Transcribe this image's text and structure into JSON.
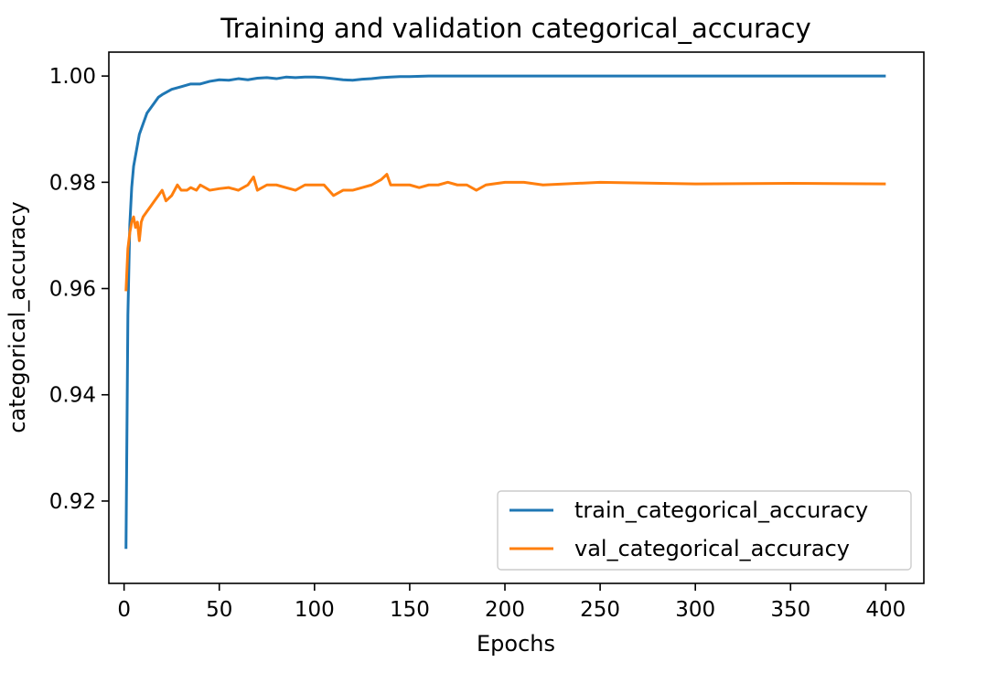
{
  "chart_data": {
    "type": "line",
    "title": "Training and validation categorical_accuracy",
    "xlabel": "Epochs",
    "ylabel": "categorical_accuracy",
    "xlim": [
      -8,
      420
    ],
    "ylim": [
      0.9045,
      1.0045
    ],
    "xticks": [
      0,
      50,
      100,
      150,
      200,
      250,
      300,
      350,
      400
    ],
    "xtick_labels": [
      "0",
      "50",
      "100",
      "150",
      "200",
      "250",
      "300",
      "350",
      "400"
    ],
    "yticks": [
      0.92,
      0.94,
      0.96,
      0.98,
      1.0
    ],
    "ytick_labels": [
      "0.92",
      "0.94",
      "0.96",
      "0.98",
      "1.00"
    ],
    "grid": false,
    "legend_position": "lower-right",
    "series": [
      {
        "name": "train_categorical_accuracy",
        "color": "#1f77b4",
        "x": [
          1,
          2,
          3,
          4,
          5,
          6,
          8,
          10,
          12,
          14,
          16,
          18,
          20,
          25,
          30,
          35,
          40,
          45,
          50,
          55,
          60,
          65,
          70,
          75,
          80,
          85,
          90,
          95,
          100,
          105,
          110,
          115,
          120,
          125,
          130,
          135,
          140,
          145,
          150,
          160,
          170,
          180,
          190,
          200,
          250,
          300,
          350,
          400
        ],
        "y": [
          0.911,
          0.955,
          0.972,
          0.979,
          0.983,
          0.985,
          0.989,
          0.991,
          0.993,
          0.994,
          0.995,
          0.996,
          0.9965,
          0.9975,
          0.998,
          0.9985,
          0.9985,
          0.999,
          0.9993,
          0.9992,
          0.9995,
          0.9993,
          0.9996,
          0.9997,
          0.9995,
          0.9998,
          0.9997,
          0.9998,
          0.9998,
          0.9997,
          0.9995,
          0.9993,
          0.9992,
          0.9994,
          0.9995,
          0.9997,
          0.9998,
          0.9999,
          0.9999,
          1.0,
          1.0,
          1.0,
          1.0,
          1.0,
          1.0,
          1.0,
          1.0,
          1.0
        ]
      },
      {
        "name": "val_categorical_accuracy",
        "color": "#ff7f0e",
        "x": [
          1,
          2,
          3,
          4,
          5,
          6,
          7,
          8,
          9,
          10,
          12,
          14,
          16,
          18,
          20,
          22,
          25,
          28,
          30,
          33,
          35,
          38,
          40,
          45,
          50,
          55,
          60,
          65,
          68,
          70,
          75,
          80,
          85,
          90,
          95,
          100,
          105,
          110,
          115,
          120,
          125,
          130,
          135,
          138,
          140,
          145,
          150,
          155,
          160,
          165,
          170,
          175,
          180,
          185,
          190,
          200,
          210,
          220,
          250,
          300,
          350,
          400
        ],
        "y": [
          0.9595,
          0.9675,
          0.9705,
          0.9725,
          0.9735,
          0.9715,
          0.9725,
          0.969,
          0.9725,
          0.9735,
          0.9745,
          0.9755,
          0.9765,
          0.9775,
          0.9785,
          0.9765,
          0.9775,
          0.9795,
          0.9785,
          0.9785,
          0.979,
          0.9785,
          0.9795,
          0.9785,
          0.9788,
          0.979,
          0.9785,
          0.9795,
          0.981,
          0.9785,
          0.9795,
          0.9795,
          0.979,
          0.9785,
          0.9795,
          0.9795,
          0.9795,
          0.9775,
          0.9785,
          0.9785,
          0.979,
          0.9795,
          0.9805,
          0.9815,
          0.9795,
          0.9795,
          0.9795,
          0.979,
          0.9795,
          0.9795,
          0.98,
          0.9795,
          0.9795,
          0.9785,
          0.9795,
          0.98,
          0.98,
          0.9795,
          0.98,
          0.9797,
          0.9798,
          0.9797
        ]
      }
    ]
  }
}
